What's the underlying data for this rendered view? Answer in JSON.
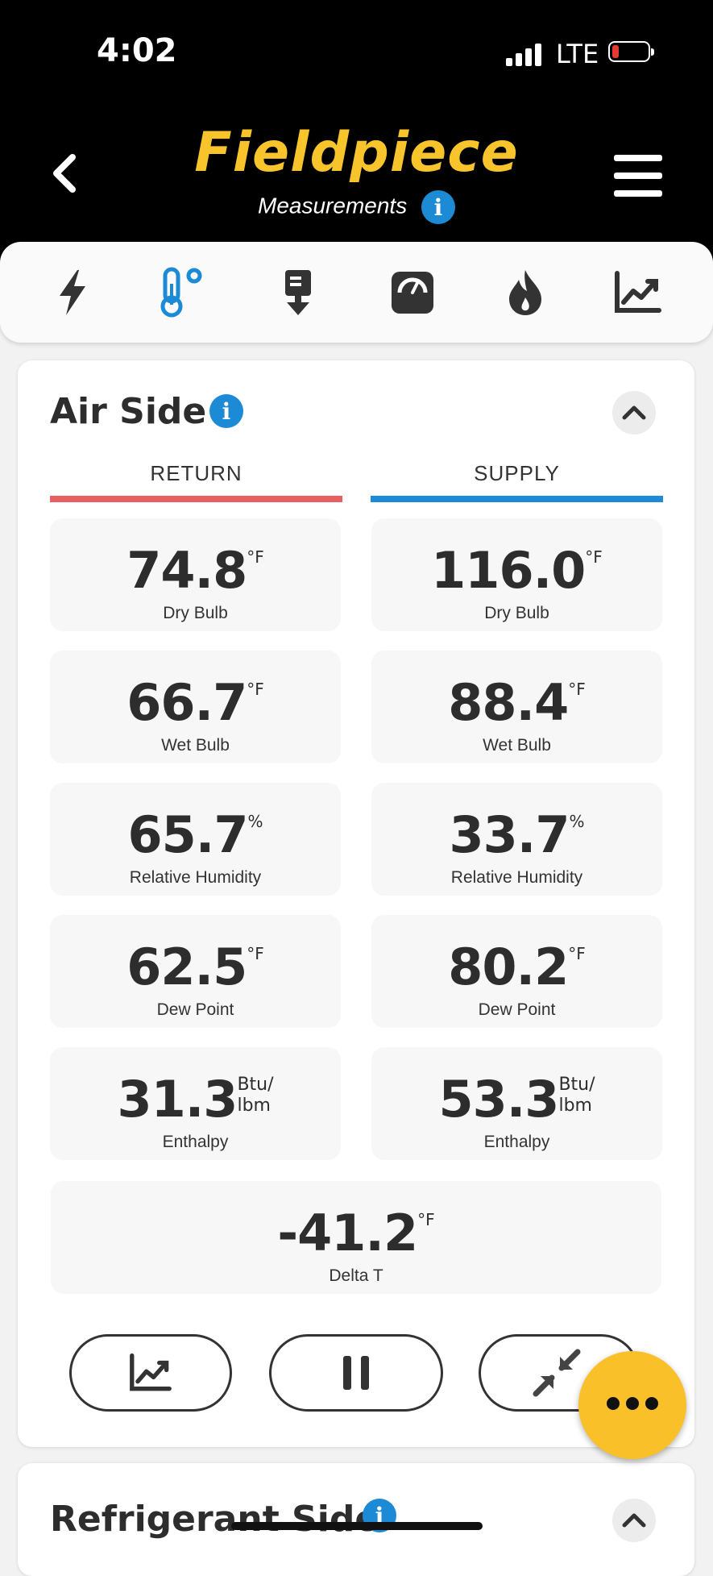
{
  "status": {
    "time": "4:02",
    "network": "LTE",
    "battery_color": "#e53935"
  },
  "header": {
    "brand": "Fieldpiece",
    "subtitle": "Measurements",
    "info_glyph": "i"
  },
  "tabs": [
    {
      "name": "electrical-icon"
    },
    {
      "name": "temperature-icon",
      "active": true
    },
    {
      "name": "airflow-icon"
    },
    {
      "name": "pressure-gauge-icon"
    },
    {
      "name": "combustion-flame-icon"
    },
    {
      "name": "trend-chart-icon"
    }
  ],
  "air_side": {
    "title": "Air Side",
    "return_label": "RETURN",
    "supply_label": "SUPPLY",
    "return_color": "#e86060",
    "supply_color": "#1d8ad6",
    "return": [
      {
        "value": "74.8",
        "unit": "°F",
        "label": "Dry Bulb"
      },
      {
        "value": "66.7",
        "unit": "°F",
        "label": "Wet Bulb"
      },
      {
        "value": "65.7",
        "unit": "%",
        "label": "Relative Humidity"
      },
      {
        "value": "62.5",
        "unit": "°F",
        "label": "Dew Point"
      },
      {
        "value": "31.3",
        "unit_top": "Btu/",
        "unit_bottom": "lbm",
        "label": "Enthalpy"
      }
    ],
    "supply": [
      {
        "value": "116.0",
        "unit": "°F",
        "label": "Dry Bulb"
      },
      {
        "value": "88.4",
        "unit": "°F",
        "label": "Wet Bulb"
      },
      {
        "value": "33.7",
        "unit": "%",
        "label": "Relative Humidity"
      },
      {
        "value": "80.2",
        "unit": "°F",
        "label": "Dew Point"
      },
      {
        "value": "53.3",
        "unit_top": "Btu/",
        "unit_bottom": "lbm",
        "label": "Enthalpy"
      }
    ],
    "delta": {
      "value": "-41.2",
      "unit": "°F",
      "label": "Delta T"
    }
  },
  "refrigerant_side": {
    "title": "Refrigerant Side"
  },
  "accent": "#f9c02a"
}
